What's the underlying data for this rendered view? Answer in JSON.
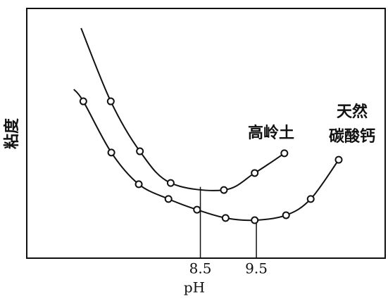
{
  "chart_data": {
    "type": "line",
    "xlabel": "pH",
    "ylabel": "粘度",
    "xlim": [
      5.4,
      11.8
    ],
    "ylim": [
      0,
      10
    ],
    "xticks": [
      {
        "value": 8.5,
        "label": "8.5"
      },
      {
        "value": 9.5,
        "label": "9.5"
      }
    ],
    "series": [
      {
        "name": [
          "高岭土"
        ],
        "color": "#111111",
        "x": [
          6.37,
          6.9,
          7.42,
          7.97,
          8.92,
          9.47,
          10.0
        ],
        "values": [
          9.21,
          6.28,
          4.28,
          3.01,
          2.73,
          3.41,
          4.2
        ],
        "markers": [
          false,
          true,
          true,
          true,
          true,
          true,
          true
        ]
      },
      {
        "name": [
          "天然",
          "碳酸钙"
        ],
        "color": "#111111",
        "x": [
          6.24,
          6.41,
          6.91,
          7.4,
          7.93,
          8.44,
          8.95,
          9.47,
          10.03,
          10.47,
          10.97
        ],
        "values": [
          6.76,
          6.28,
          4.23,
          2.96,
          2.37,
          1.94,
          1.61,
          1.52,
          1.72,
          2.37,
          3.94
        ],
        "markers": [
          false,
          true,
          true,
          true,
          true,
          true,
          true,
          true,
          true,
          true,
          true
        ]
      }
    ]
  }
}
